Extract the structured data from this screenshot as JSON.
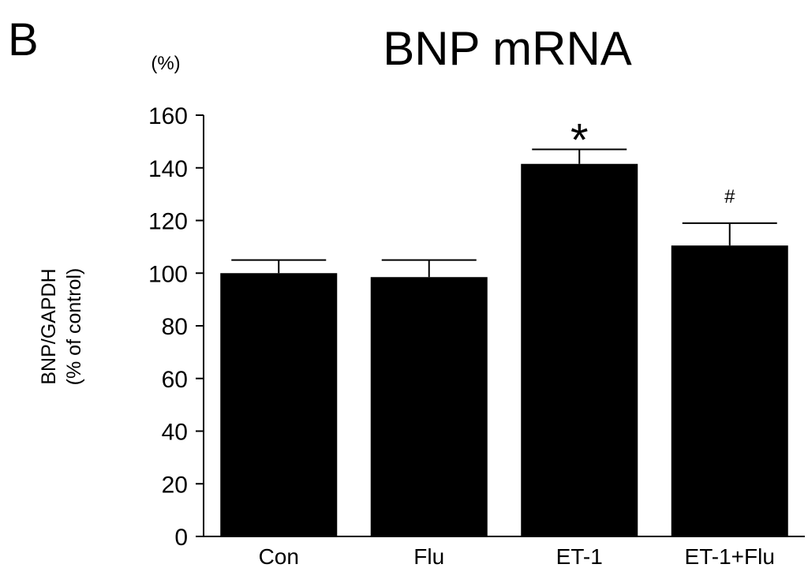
{
  "chart_data": {
    "type": "bar",
    "panel_label": "B",
    "title": "BNP mRNA",
    "unit_label": "(%)",
    "ylabel_line1": "BNP/GAPDH",
    "ylabel_line2": "(% of control)",
    "xlabel": "",
    "categories": [
      "Con",
      "Flu",
      "ET-1",
      "ET-1+Flu"
    ],
    "values": [
      100,
      98.5,
      141.5,
      110.5
    ],
    "error_upper": [
      105,
      105,
      147,
      119
    ],
    "annotations": [
      "",
      "",
      "*",
      "#"
    ],
    "ylim": [
      0,
      160
    ],
    "yticks": [
      "0",
      "20",
      "40",
      "60",
      "80",
      "100",
      "120",
      "140",
      "160"
    ],
    "grid": false,
    "legend": "none",
    "bar_color": "#000000"
  }
}
